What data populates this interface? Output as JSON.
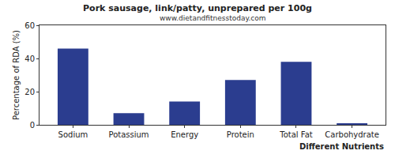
{
  "chart_data": {
    "type": "bar",
    "title": "Pork sausage, link/patty, unprepared per 100g",
    "subtitle": "www.dietandfitnesstoday.com",
    "x_label": "Different Nutrients",
    "y_label": "Percentage of RDA (%)",
    "categories": [
      "Sodium",
      "Potassium",
      "Energy",
      "Protein",
      "Total Fat",
      "Carbohydrate"
    ],
    "values": [
      46,
      7,
      14,
      27,
      38,
      1
    ],
    "color": "#2b3d8f",
    "ylim": [
      0,
      60
    ],
    "yticks": [
      0,
      20,
      40,
      60
    ],
    "grid": false
  }
}
